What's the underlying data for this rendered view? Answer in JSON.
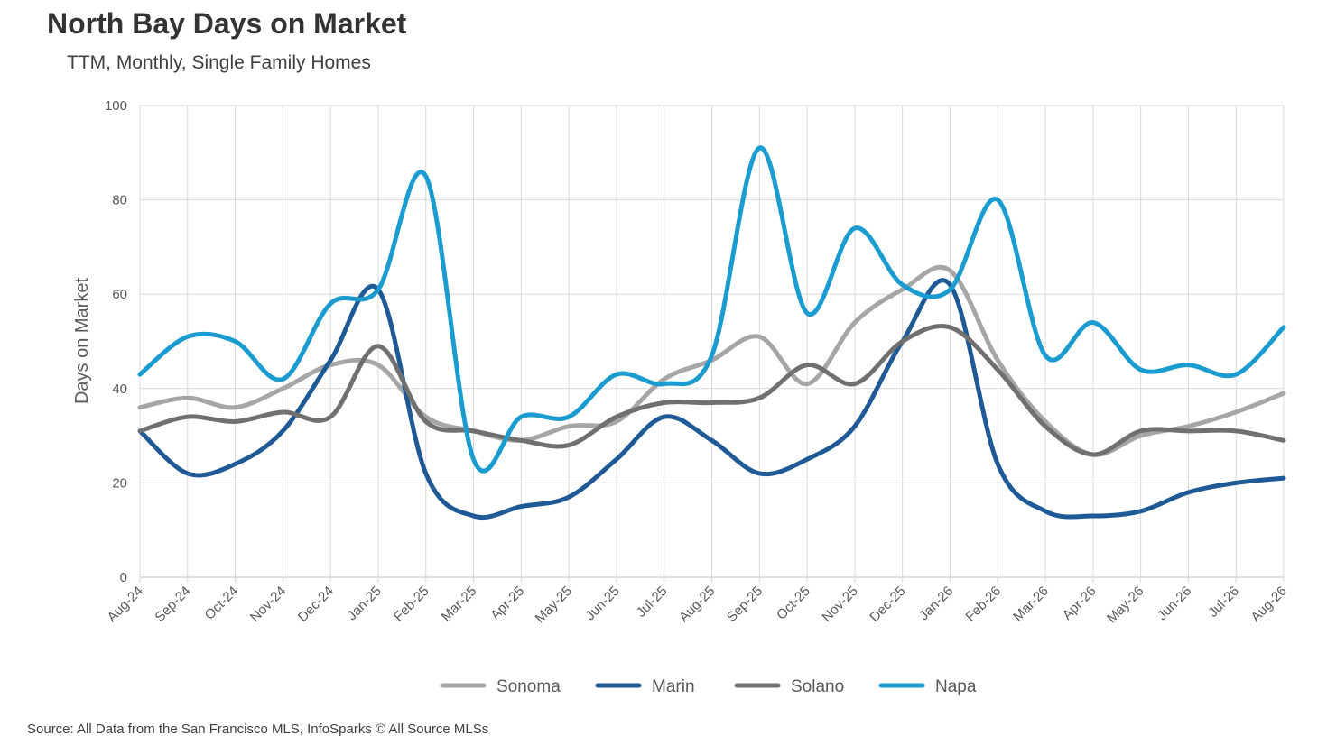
{
  "title": "North Bay Days on Market",
  "subtitle": "TTM, Monthly, Single Family Homes",
  "source": "Source: All Data from the San Francisco MLS, InfoSparks © All Source MLSs",
  "chart_data": {
    "type": "line",
    "ylabel": "Days on Market",
    "ylim": [
      0,
      100
    ],
    "yticks": [
      "0",
      "20",
      "40",
      "60",
      "80",
      "100"
    ],
    "grid": true,
    "legend_position": "bottom",
    "categories": [
      "Aug-24",
      "Sep-24",
      "Oct-24",
      "Nov-24",
      "Dec-24",
      "Jan-25",
      "Feb-25",
      "Mar-25",
      "Apr-25",
      "May-25",
      "Jun-25",
      "Jul-25",
      "Aug-25",
      "Sep-25",
      "Oct-25",
      "Nov-25",
      "Dec-25",
      "Jan-26",
      "Feb-26",
      "Mar-26",
      "Apr-26",
      "May-26",
      "Jun-26",
      "Jul-26",
      "Aug-26"
    ],
    "series": [
      {
        "name": "Sonoma",
        "color": "#A6A6A6",
        "values": [
          36,
          38,
          36,
          40,
          45,
          45,
          34,
          31,
          29,
          32,
          33,
          42,
          46,
          51,
          41,
          54,
          61,
          65,
          46,
          33,
          26,
          30,
          32,
          35,
          39
        ]
      },
      {
        "name": "Marin",
        "color": "#1F5A96",
        "values": [
          31,
          22,
          24,
          31,
          46,
          61,
          22,
          13,
          15,
          17,
          25,
          34,
          29,
          22,
          25,
          32,
          50,
          62,
          24,
          14,
          13,
          14,
          18,
          20,
          21
        ]
      },
      {
        "name": "Solano",
        "color": "#707070",
        "values": [
          31,
          34,
          33,
          35,
          34,
          49,
          33,
          31,
          29,
          28,
          34,
          37,
          37,
          38,
          45,
          41,
          50,
          53,
          44,
          32,
          26,
          31,
          31,
          31,
          29
        ]
      },
      {
        "name": "Napa",
        "color": "#1B9CD0",
        "values": [
          43,
          51,
          50,
          42,
          58,
          61,
          85,
          25,
          34,
          34,
          43,
          41,
          47,
          91,
          56,
          74,
          62,
          61,
          80,
          47,
          54,
          44,
          45,
          43,
          53
        ]
      }
    ]
  }
}
